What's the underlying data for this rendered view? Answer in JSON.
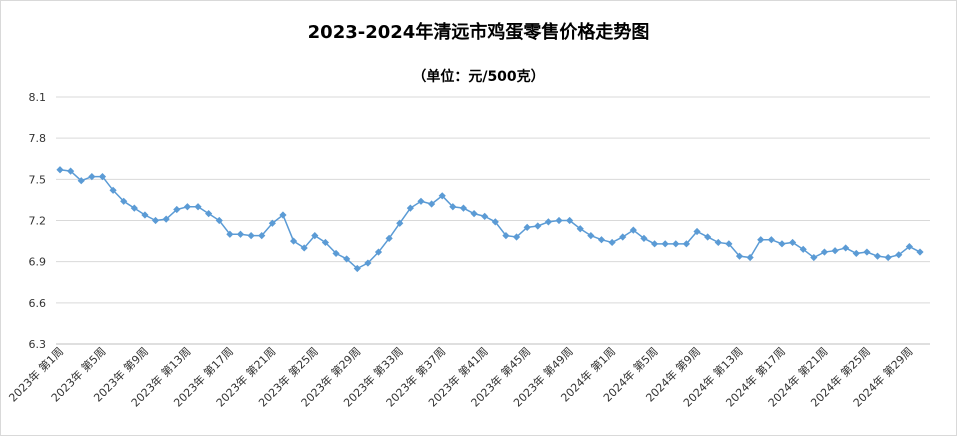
{
  "chart_data": {
    "type": "line",
    "title": "2023-2024年清远市鸡蛋零售价格走势图",
    "subtitle": "（单位：元/500克）",
    "ylim": [
      6.3,
      8.1
    ],
    "yticks": [
      "6.3",
      "6.6",
      "6.9",
      "7.2",
      "7.5",
      "7.8",
      "8.1"
    ],
    "grid": "horizontal",
    "legend": "none",
    "series_color": "#5b9bd5",
    "x": [
      "2023年 第1周",
      "2023年 第2周",
      "2023年 第3周",
      "2023年 第4周",
      "2023年 第5周",
      "2023年 第6周",
      "2023年 第7周",
      "2023年 第8周",
      "2023年 第9周",
      "2023年 第10周",
      "2023年 第11周",
      "2023年 第12周",
      "2023年 第13周",
      "2023年 第14周",
      "2023年 第15周",
      "2023年 第16周",
      "2023年 第17周",
      "2023年 第18周",
      "2023年 第19周",
      "2023年 第20周",
      "2023年 第21周",
      "2023年 第22周",
      "2023年 第23周",
      "2023年 第24周",
      "2023年 第25周",
      "2023年 第26周",
      "2023年 第27周",
      "2023年 第28周",
      "2023年 第29周",
      "2023年 第30周",
      "2023年 第31周",
      "2023年 第32周",
      "2023年 第33周",
      "2023年 第34周",
      "2023年 第35周",
      "2023年 第36周",
      "2023年 第37周",
      "2023年 第38周",
      "2023年 第39周",
      "2023年 第40周",
      "2023年 第41周",
      "2023年 第42周",
      "2023年 第43周",
      "2023年 第44周",
      "2023年 第45周",
      "2023年 第46周",
      "2023年 第47周",
      "2023年 第48周",
      "2023年 第49周",
      "2023年 第50周",
      "2023年 第51周",
      "2023年 第52周",
      "2024年 第1周",
      "2024年 第2周",
      "2024年 第3周",
      "2024年 第4周",
      "2024年 第5周",
      "2024年 第6周",
      "2024年 第7周",
      "2024年 第8周",
      "2024年 第9周",
      "2024年 第10周",
      "2024年 第11周",
      "2024年 第12周",
      "2024年 第13周",
      "2024年 第14周",
      "2024年 第15周",
      "2024年 第16周",
      "2024年 第17周",
      "2024年 第18周",
      "2024年 第19周",
      "2024年 第20周",
      "2024年 第21周",
      "2024年 第22周",
      "2024年 第23周",
      "2024年 第24周",
      "2024年 第25周",
      "2024年 第26周",
      "2024年 第27周",
      "2024年 第28周",
      "2024年 第29周",
      "2024年 第30周"
    ],
    "series": [
      {
        "values": [
          7.57,
          7.56,
          7.49,
          7.52,
          7.52,
          7.42,
          7.34,
          7.29,
          7.24,
          7.2,
          7.21,
          7.28,
          7.3,
          7.3,
          7.25,
          7.2,
          7.1,
          7.1,
          7.09,
          7.09,
          7.18,
          7.24,
          7.05,
          7.0,
          7.09,
          7.04,
          6.96,
          6.92,
          6.85,
          6.89,
          6.97,
          7.07,
          7.18,
          7.29,
          7.34,
          7.32,
          7.38,
          7.3,
          7.29,
          7.25,
          7.23,
          7.19,
          7.09,
          7.08,
          7.15,
          7.16,
          7.19,
          7.2,
          7.2,
          7.14,
          7.09,
          7.06,
          7.04,
          7.08,
          7.13,
          7.07,
          7.03,
          7.03,
          7.03,
          7.03,
          7.12,
          7.08,
          7.04,
          7.03,
          6.94,
          6.93,
          7.06,
          7.06,
          7.03,
          7.04,
          6.99,
          6.93,
          6.97,
          6.98,
          7.0,
          6.96,
          6.97,
          6.94,
          6.93,
          6.95,
          7.01,
          6.97
        ]
      }
    ],
    "x_tick_labels": [
      {
        "index": 0,
        "label": "2023年 第1周"
      },
      {
        "index": 4,
        "label": "2023年 第5周"
      },
      {
        "index": 8,
        "label": "2023年 第9周"
      },
      {
        "index": 12,
        "label": "2023年 第13周"
      },
      {
        "index": 16,
        "label": "2023年 第17周"
      },
      {
        "index": 20,
        "label": "2023年 第21周"
      },
      {
        "index": 24,
        "label": "2023年 第25周"
      },
      {
        "index": 28,
        "label": "2023年 第29周"
      },
      {
        "index": 32,
        "label": "2023年 第33周"
      },
      {
        "index": 36,
        "label": "2023年 第37周"
      },
      {
        "index": 40,
        "label": "2023年 第41周"
      },
      {
        "index": 44,
        "label": "2023年 第45周"
      },
      {
        "index": 48,
        "label": "2023年 第49周"
      },
      {
        "index": 52,
        "label": "2024年 第1周"
      },
      {
        "index": 56,
        "label": "2024年 第5周"
      },
      {
        "index": 60,
        "label": "2024年 第9周"
      },
      {
        "index": 64,
        "label": "2024年 第13周"
      },
      {
        "index": 68,
        "label": "2024年 第17周"
      },
      {
        "index": 72,
        "label": "2024年 第21周"
      },
      {
        "index": 76,
        "label": "2024年 第25周"
      },
      {
        "index": 80,
        "label": "2024年 第29周"
      }
    ]
  }
}
